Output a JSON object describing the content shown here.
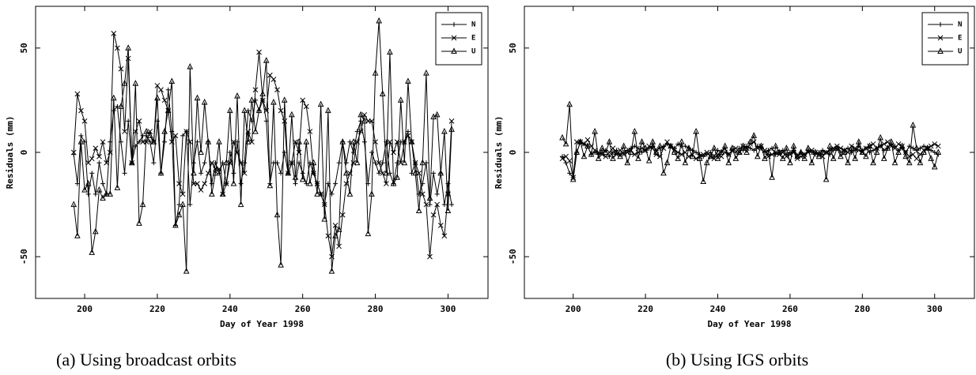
{
  "chart_data": [
    {
      "type": "line",
      "caption": "(a) Using broadcast orbits",
      "xlabel": "Day of Year 1998",
      "ylabel": "Residuals (mm)",
      "xlim": [
        186.5,
        311
      ],
      "ylim": [
        -70,
        70
      ],
      "xticks": [
        200,
        220,
        240,
        260,
        280,
        300
      ],
      "yticks": [
        -50,
        0,
        50
      ],
      "legend": "upper right",
      "x": [
        197,
        198,
        199,
        200,
        201,
        202,
        203,
        204,
        205,
        206,
        207,
        208,
        209,
        210,
        211,
        212,
        213,
        214,
        215,
        216,
        217,
        218,
        219,
        220,
        221,
        222,
        223,
        224,
        225,
        226,
        227,
        228,
        229,
        230,
        231,
        232,
        233,
        234,
        235,
        236,
        237,
        238,
        239,
        240,
        241,
        242,
        243,
        244,
        245,
        246,
        247,
        248,
        249,
        250,
        251,
        252,
        253,
        254,
        255,
        256,
        257,
        258,
        259,
        260,
        261,
        262,
        263,
        264,
        265,
        266,
        267,
        268,
        269,
        270,
        271,
        272,
        273,
        274,
        275,
        276,
        277,
        278,
        279,
        280,
        281,
        282,
        283,
        284,
        285,
        286,
        287,
        288,
        289,
        290,
        291,
        292,
        293,
        294,
        295,
        296,
        297,
        298,
        299,
        300,
        301
      ],
      "series": [
        {
          "name": "N",
          "color": "#000000",
          "marker": "plus",
          "values": [
            -1,
            -15,
            8,
            5,
            -20,
            -10,
            -20,
            -5,
            -15,
            -20,
            5,
            20,
            22,
            5,
            -10,
            15,
            -5,
            3,
            5,
            8,
            8,
            5,
            -5,
            15,
            -10,
            5,
            30,
            10,
            -35,
            -25,
            8,
            10,
            -25,
            -5,
            5,
            -10,
            -5,
            5,
            -15,
            -5,
            -10,
            -5,
            -15,
            0,
            -10,
            5,
            -15,
            -5,
            20,
            15,
            25,
            20,
            25,
            15,
            -15,
            -5,
            -5,
            -10,
            0,
            -10,
            -5,
            -15,
            -5,
            -10,
            -15,
            -5,
            -10,
            -15,
            -20,
            -25,
            -15,
            -20,
            -15,
            -5,
            5,
            -5,
            5,
            0,
            10,
            15,
            5,
            -15,
            0,
            -5,
            -10,
            -5,
            5,
            -10,
            -15,
            -5,
            5,
            5,
            10,
            -10,
            -5,
            -20,
            -15,
            -5,
            -25,
            -10,
            -20,
            -10,
            -25,
            -15,
            -25
          ]
        },
        {
          "name": "E",
          "color": "#000000",
          "marker": "cross",
          "values": [
            0,
            28,
            20,
            15,
            -5,
            -3,
            2,
            -2,
            5,
            -5,
            0,
            57,
            50,
            40,
            10,
            45,
            -5,
            10,
            15,
            5,
            5,
            10,
            5,
            32,
            30,
            25,
            20,
            5,
            8,
            -15,
            -20,
            10,
            5,
            -15,
            -15,
            -18,
            -15,
            -10,
            -5,
            -8,
            -8,
            -20,
            -15,
            -5,
            5,
            0,
            -5,
            -10,
            10,
            5,
            30,
            48,
            25,
            20,
            37,
            35,
            30,
            20,
            15,
            -10,
            -5,
            5,
            0,
            25,
            22,
            10,
            -10,
            -15,
            -20,
            -25,
            -40,
            -50,
            -35,
            -45,
            -30,
            -15,
            -10,
            -5,
            5,
            10,
            18,
            15,
            15,
            5,
            -5,
            -10,
            -15,
            5,
            0,
            5,
            -5,
            5,
            8,
            5,
            -5,
            -10,
            -20,
            -25,
            -50,
            -30,
            -25,
            -35,
            -40,
            -20,
            15
          ]
        },
        {
          "name": "U",
          "color": "#000000",
          "marker": "triangle",
          "values": [
            -25,
            -40,
            5,
            -18,
            -15,
            -48,
            -38,
            -18,
            -22,
            -20,
            -20,
            26,
            -17,
            22,
            33,
            50,
            -5,
            33,
            -34,
            -25,
            10,
            8,
            5,
            26,
            -10,
            10,
            20,
            34,
            -35,
            -30,
            -25,
            -57,
            41,
            -10,
            26,
            0,
            24,
            5,
            -20,
            -10,
            5,
            -20,
            -5,
            20,
            -15,
            27,
            -25,
            20,
            5,
            25,
            10,
            20,
            28,
            44,
            -16,
            24,
            -30,
            -54,
            25,
            -10,
            18,
            -12,
            5,
            -13,
            5,
            -15,
            -5,
            -20,
            23,
            -32,
            20,
            -57,
            -40,
            -37,
            5,
            -10,
            -20,
            5,
            -5,
            18,
            15,
            -39,
            -20,
            38,
            63,
            28,
            -10,
            48,
            -15,
            -12,
            25,
            -5,
            34,
            5,
            -10,
            -28,
            -5,
            38,
            -22,
            17,
            18,
            -10,
            10,
            -28,
            11
          ]
        }
      ]
    },
    {
      "type": "line",
      "caption": "(b) Using IGS orbits",
      "xlabel": "Day of Year 1998",
      "ylabel": "Residuals (mm)",
      "xlim": [
        186.5,
        311
      ],
      "ylim": [
        -70,
        70
      ],
      "xticks": [
        200,
        220,
        240,
        260,
        280,
        300
      ],
      "yticks": [
        -50,
        0,
        50
      ],
      "legend": "upper right",
      "x": [
        197,
        198,
        199,
        200,
        201,
        202,
        203,
        204,
        205,
        206,
        207,
        208,
        209,
        210,
        211,
        212,
        213,
        214,
        215,
        216,
        217,
        218,
        219,
        220,
        221,
        222,
        223,
        224,
        225,
        226,
        227,
        228,
        229,
        230,
        231,
        232,
        233,
        234,
        235,
        236,
        237,
        238,
        239,
        240,
        241,
        242,
        243,
        244,
        245,
        246,
        247,
        248,
        249,
        250,
        251,
        252,
        253,
        254,
        255,
        256,
        257,
        258,
        259,
        260,
        261,
        262,
        263,
        264,
        265,
        266,
        267,
        268,
        269,
        270,
        271,
        272,
        273,
        274,
        275,
        276,
        277,
        278,
        279,
        280,
        281,
        282,
        283,
        284,
        285,
        286,
        287,
        288,
        289,
        290,
        291,
        292,
        293,
        294,
        295,
        296,
        297,
        298,
        299,
        300,
        301
      ],
      "series": [
        {
          "name": "N",
          "color": "#000000",
          "marker": "plus",
          "values": [
            -2,
            -5,
            -10,
            -12,
            0,
            5,
            4,
            3,
            -1,
            0,
            -1,
            0,
            1,
            -2,
            0,
            1,
            -1,
            0,
            1,
            2,
            3,
            2,
            0,
            1,
            2,
            3,
            1,
            2,
            3,
            4,
            3,
            2,
            4,
            3,
            3,
            2,
            1,
            0,
            -1,
            -2,
            -1,
            0,
            -2,
            1,
            0,
            2,
            -1,
            1,
            0,
            2,
            1,
            3,
            2,
            1,
            3,
            2,
            0,
            1,
            2,
            -1,
            0,
            1,
            -1,
            0,
            1,
            -2,
            0,
            -1,
            1,
            0,
            -1,
            0,
            1,
            0,
            -1,
            1,
            2,
            0,
            1,
            2,
            0,
            1,
            3,
            1,
            2,
            0,
            1,
            2,
            3,
            1,
            2,
            4,
            3,
            1,
            2,
            0,
            3,
            2,
            1,
            2,
            3,
            2,
            1,
            0,
            -1
          ]
        },
        {
          "name": "E",
          "color": "#000000",
          "marker": "cross",
          "values": [
            -3,
            -2,
            -4,
            -12,
            5,
            5,
            4,
            6,
            3,
            1,
            0,
            -1,
            -2,
            0,
            2,
            -1,
            1,
            -1,
            0,
            1,
            -1,
            0,
            2,
            1,
            3,
            2,
            -1,
            -2,
            2,
            5,
            3,
            1,
            0,
            -1,
            0,
            -2,
            -1,
            -3,
            -2,
            -1,
            0,
            -2,
            -3,
            -1,
            -2,
            0,
            -1,
            1,
            2,
            0,
            3,
            2,
            4,
            5,
            2,
            3,
            1,
            -2,
            -1,
            0,
            -1,
            0,
            -2,
            -1,
            0,
            -3,
            -2,
            -1,
            0,
            1,
            0,
            -1,
            -2,
            0,
            1,
            2,
            3,
            2,
            1,
            0,
            3,
            2,
            1,
            0,
            2,
            3,
            4,
            2,
            3,
            4,
            5,
            3,
            2,
            4,
            3,
            0,
            -2,
            -1,
            -3,
            -1,
            1,
            2,
            3,
            4,
            3
          ]
        },
        {
          "name": "U",
          "color": "#000000",
          "marker": "triangle",
          "values": [
            7,
            4,
            23,
            -13,
            0,
            5,
            -2,
            3,
            -1,
            10,
            -3,
            2,
            0,
            5,
            -3,
            0,
            -2,
            3,
            -5,
            0,
            10,
            -3,
            5,
            2,
            -4,
            5,
            0,
            3,
            -10,
            -5,
            3,
            0,
            -3,
            5,
            -5,
            2,
            -2,
            10,
            -3,
            -14,
            -5,
            -2,
            2,
            -3,
            0,
            3,
            -5,
            2,
            -3,
            0,
            3,
            0,
            5,
            8,
            -2,
            3,
            -3,
            0,
            -12,
            3,
            0,
            -3,
            2,
            -5,
            3,
            -2,
            0,
            -3,
            2,
            -5,
            0,
            -2,
            0,
            -13,
            3,
            -3,
            2,
            -2,
            0,
            -5,
            2,
            -3,
            5,
            0,
            -2,
            3,
            -5,
            0,
            7,
            -3,
            2,
            5,
            -5,
            0,
            3,
            -2,
            -5,
            13,
            2,
            -5,
            0,
            2,
            -3,
            -7,
            0
          ]
        }
      ]
    }
  ]
}
